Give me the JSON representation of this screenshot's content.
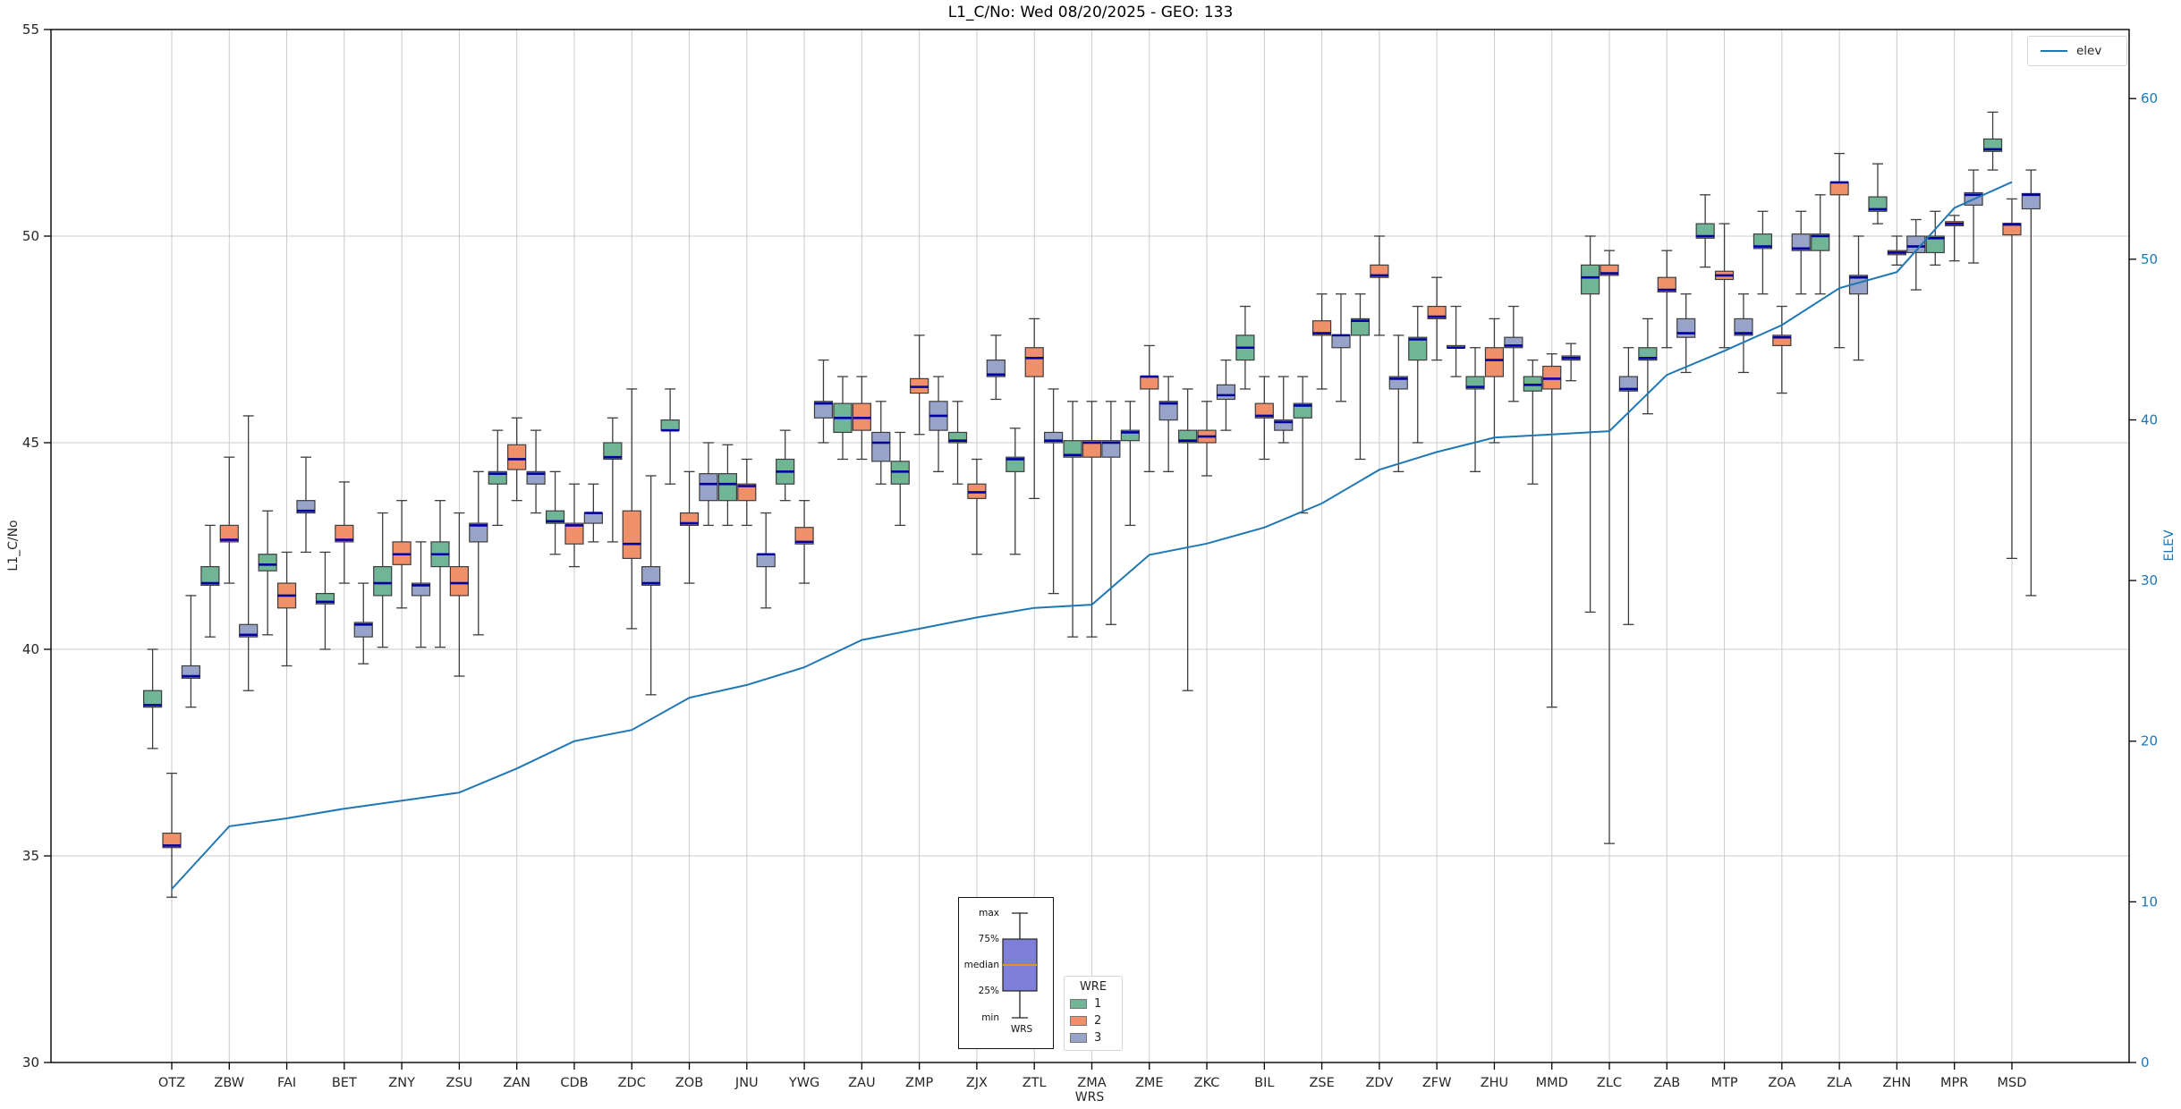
{
  "title": "L1_C/No: Wed 08/20/2025 - GEO: 133",
  "axes": {
    "left": {
      "label": "L1_C/No",
      "ticks": [
        30,
        35,
        40,
        45,
        50,
        55
      ],
      "color": "#262626"
    },
    "right": {
      "label": "ELEV",
      "ticks": [
        0,
        10,
        20,
        30,
        40,
        50,
        60
      ],
      "color": "#1f77b4"
    },
    "x": {
      "label": "WRS"
    }
  },
  "legend_elev": {
    "label": "elev",
    "line_color": "#1f77b4"
  },
  "legend_wre": {
    "title": "WRE",
    "items": [
      {
        "label": "1",
        "color": "#6fb596"
      },
      {
        "label": "2",
        "color": "#f0906a"
      },
      {
        "label": "3",
        "color": "#97a3c8"
      }
    ]
  },
  "inset_legend": {
    "labels": [
      "max",
      "75%",
      "median",
      "25%",
      "min"
    ],
    "xlabel": "WRS",
    "box_color": "#7f7fd9",
    "median_color": "#ee8833"
  },
  "chart_data": {
    "type": "boxplot+line",
    "title": "L1_C/No: Wed 08/20/2025 - GEO: 133",
    "xlabel": "WRS",
    "ylabel_left": "L1_C/No",
    "ylabel_right": "ELEV",
    "ylim_left": [
      30,
      55
    ],
    "ylim_right": [
      0,
      64.3
    ],
    "grid": true,
    "grid_left_values": [
      35,
      40,
      45,
      50
    ],
    "categories": [
      "OTZ",
      "ZBW",
      "FAI",
      "BET",
      "ZNY",
      "ZSU",
      "ZAN",
      "CDB",
      "ZDC",
      "ZOB",
      "JNU",
      "YWG",
      "ZAU",
      "ZMP",
      "ZJX",
      "ZTL",
      "ZMA",
      "ZME",
      "ZKC",
      "BIL",
      "ZSE",
      "ZDV",
      "ZFW",
      "ZHU",
      "MMD",
      "ZLC",
      "ZAB",
      "MTP",
      "ZOA",
      "ZLA",
      "ZHN",
      "MPR",
      "MSD"
    ],
    "box_stats_order": [
      "whisker_low",
      "q1",
      "median",
      "q3",
      "whisker_high"
    ],
    "series": [
      {
        "name": "1",
        "color": "#6fb596",
        "boxes": [
          [
            37.6,
            38.6,
            38.65,
            39.0,
            40.0
          ],
          [
            40.3,
            41.55,
            41.6,
            42.0,
            43.0
          ],
          [
            40.35,
            41.9,
            42.05,
            42.3,
            43.35
          ],
          [
            40.0,
            41.1,
            41.15,
            41.35,
            42.35
          ],
          [
            40.05,
            41.3,
            41.6,
            42.0,
            43.3
          ],
          [
            40.05,
            42.0,
            42.3,
            42.6,
            43.6
          ],
          [
            43.0,
            44.0,
            44.25,
            44.3,
            45.3
          ],
          [
            42.3,
            43.05,
            43.1,
            43.35,
            44.3
          ],
          [
            42.6,
            44.6,
            44.65,
            45.0,
            45.6
          ],
          [
            44.0,
            45.3,
            45.3,
            45.55,
            46.3
          ],
          [
            43.0,
            43.6,
            44.0,
            44.25,
            44.95
          ],
          [
            43.6,
            44.0,
            44.3,
            44.6,
            45.3
          ],
          [
            44.6,
            45.25,
            45.6,
            45.95,
            46.6
          ],
          [
            43.0,
            44.0,
            44.3,
            44.55,
            45.25
          ],
          [
            44.0,
            45.0,
            45.05,
            45.25,
            46.0
          ],
          [
            42.3,
            44.3,
            44.6,
            44.65,
            45.35
          ],
          [
            40.3,
            44.65,
            44.7,
            45.05,
            46.0
          ],
          [
            43.0,
            45.05,
            45.25,
            45.3,
            46.0
          ],
          [
            39.0,
            45.0,
            45.05,
            45.3,
            46.3
          ],
          [
            46.3,
            47.0,
            47.3,
            47.6,
            48.3
          ],
          [
            43.3,
            45.6,
            45.9,
            45.95,
            46.6
          ],
          [
            44.6,
            47.6,
            47.95,
            48.0,
            48.6
          ],
          [
            45.0,
            47.0,
            47.5,
            47.55,
            48.3
          ],
          [
            44.3,
            46.3,
            46.35,
            46.6,
            47.3
          ],
          [
            44.0,
            46.25,
            46.4,
            46.6,
            47.0
          ],
          [
            40.9,
            48.6,
            49.0,
            49.3,
            50.0
          ],
          [
            45.7,
            47.0,
            47.05,
            47.3,
            48.0
          ],
          [
            49.25,
            49.95,
            50.0,
            50.3,
            51.0
          ],
          [
            48.6,
            49.7,
            49.75,
            50.05,
            50.6
          ],
          [
            48.6,
            49.65,
            50.0,
            50.05,
            51.0
          ],
          [
            50.3,
            50.6,
            50.65,
            50.95,
            51.75
          ],
          [
            49.3,
            49.6,
            49.95,
            50.0,
            50.6
          ],
          [
            51.6,
            52.05,
            52.1,
            52.35,
            53.0
          ]
        ]
      },
      {
        "name": "2",
        "color": "#f0906a",
        "boxes": [
          [
            34.0,
            35.2,
            35.25,
            35.55,
            37.0
          ],
          [
            41.6,
            42.6,
            42.65,
            43.0,
            44.65
          ],
          [
            39.6,
            41.0,
            41.3,
            41.6,
            42.35
          ],
          [
            41.6,
            42.6,
            42.65,
            43.0,
            44.05
          ],
          [
            41.0,
            42.05,
            42.3,
            42.6,
            43.6
          ],
          [
            39.35,
            41.3,
            41.6,
            42.0,
            43.3
          ],
          [
            43.6,
            44.35,
            44.6,
            44.95,
            45.6
          ],
          [
            42.0,
            42.55,
            43.0,
            43.05,
            44.0
          ],
          [
            40.5,
            42.2,
            42.55,
            43.35,
            46.3
          ],
          [
            41.6,
            43.0,
            43.05,
            43.3,
            44.3
          ],
          [
            43.0,
            43.6,
            43.95,
            44.0,
            44.6
          ],
          [
            41.6,
            42.55,
            42.6,
            42.95,
            43.6
          ],
          [
            44.6,
            45.3,
            45.6,
            45.95,
            46.6
          ],
          [
            45.2,
            46.2,
            46.35,
            46.55,
            47.6
          ],
          [
            42.3,
            43.65,
            43.8,
            44.0,
            44.6
          ],
          [
            43.65,
            46.6,
            47.05,
            47.3,
            48.0
          ],
          [
            40.3,
            44.65,
            45.0,
            45.05,
            46.0
          ],
          [
            44.3,
            46.3,
            46.6,
            46.6,
            47.35
          ],
          [
            44.2,
            45.0,
            45.15,
            45.3,
            46.0
          ],
          [
            44.6,
            45.6,
            45.65,
            45.95,
            46.6
          ],
          [
            46.3,
            47.6,
            47.65,
            47.95,
            48.6
          ],
          [
            47.6,
            49.0,
            49.05,
            49.3,
            50.0
          ],
          [
            47.0,
            48.0,
            48.05,
            48.3,
            49.0
          ],
          [
            45.0,
            46.6,
            47.0,
            47.3,
            48.0
          ],
          [
            38.6,
            46.3,
            46.55,
            46.85,
            47.15
          ],
          [
            35.3,
            49.05,
            49.1,
            49.3,
            49.65
          ],
          [
            47.3,
            48.65,
            48.7,
            49.0,
            49.65
          ],
          [
            47.3,
            48.95,
            49.05,
            49.15,
            50.3
          ],
          [
            46.2,
            47.35,
            47.55,
            47.6,
            48.3
          ],
          [
            47.3,
            51.0,
            51.3,
            51.3,
            52.0
          ],
          [
            49.3,
            49.55,
            49.6,
            49.65,
            50.0
          ],
          [
            49.4,
            50.25,
            50.3,
            50.35,
            50.5
          ],
          [
            42.2,
            50.03,
            50.28,
            50.31,
            50.9
          ]
        ]
      },
      {
        "name": "3",
        "color": "#97a3c8",
        "boxes": [
          [
            38.6,
            39.3,
            39.35,
            39.6,
            41.3
          ],
          [
            39.0,
            40.3,
            40.35,
            40.6,
            45.65
          ],
          [
            42.35,
            43.3,
            43.35,
            43.6,
            44.65
          ],
          [
            39.65,
            40.3,
            40.6,
            40.65,
            41.6
          ],
          [
            40.05,
            41.3,
            41.55,
            41.6,
            42.6
          ],
          [
            40.35,
            42.6,
            43.0,
            43.05,
            44.3
          ],
          [
            43.3,
            44.0,
            44.25,
            44.3,
            45.3
          ],
          [
            42.6,
            43.05,
            43.3,
            43.3,
            44.0
          ],
          [
            38.9,
            41.55,
            41.6,
            42.0,
            44.2
          ],
          [
            43.0,
            43.6,
            44.0,
            44.25,
            45.0
          ],
          [
            41.0,
            42.0,
            42.3,
            42.3,
            43.3
          ],
          [
            45.0,
            45.6,
            45.95,
            46.0,
            47.0
          ],
          [
            44.0,
            44.55,
            45.0,
            45.25,
            46.0
          ],
          [
            44.3,
            45.3,
            45.65,
            46.0,
            46.6
          ],
          [
            46.05,
            46.6,
            46.65,
            47.0,
            47.6
          ],
          [
            41.35,
            45.0,
            45.05,
            45.25,
            46.3
          ],
          [
            40.6,
            44.65,
            45.0,
            45.05,
            46.0
          ],
          [
            44.3,
            45.55,
            45.95,
            46.0,
            46.6
          ],
          [
            45.3,
            46.05,
            46.15,
            46.4,
            47.0
          ],
          [
            45.0,
            45.3,
            45.5,
            45.55,
            46.6
          ],
          [
            46.0,
            47.3,
            47.6,
            47.6,
            48.6
          ],
          [
            44.3,
            46.3,
            46.55,
            46.6,
            47.6
          ],
          [
            46.6,
            47.3,
            47.3,
            47.35,
            48.3
          ],
          [
            46.0,
            47.3,
            47.35,
            47.55,
            48.3
          ],
          [
            46.5,
            47.0,
            47.05,
            47.1,
            47.4
          ],
          [
            40.6,
            46.25,
            46.3,
            46.6,
            47.3
          ],
          [
            46.7,
            47.55,
            47.65,
            48.0,
            48.6
          ],
          [
            46.7,
            47.6,
            47.65,
            48.0,
            48.6
          ],
          [
            48.6,
            49.65,
            49.7,
            50.05,
            50.6
          ],
          [
            47.0,
            48.6,
            49.0,
            49.05,
            50.0
          ],
          [
            48.7,
            49.6,
            49.75,
            50.0,
            50.4
          ],
          [
            49.35,
            50.75,
            51.0,
            51.05,
            51.6
          ],
          [
            41.3,
            50.66,
            51.0,
            51.03,
            51.6
          ]
        ]
      }
    ],
    "line": {
      "name": "elev",
      "axis": "right",
      "color": "#1f77b4",
      "values": [
        10.8,
        14.7,
        15.2,
        15.8,
        16.3,
        16.8,
        18.3,
        20.0,
        20.7,
        22.7,
        23.5,
        24.6,
        26.3,
        27.0,
        27.7,
        28.3,
        28.5,
        31.6,
        32.3,
        33.3,
        34.8,
        36.9,
        38.0,
        38.9,
        39.1,
        39.3,
        42.8,
        44.3,
        45.9,
        48.2,
        49.2,
        53.2,
        54.8
      ]
    },
    "style_colors": {
      "median_line": "#0000a0",
      "box_border": "#3d3d3d",
      "whisker": "#3d3d3d",
      "gridline": "#cbcbcb",
      "frame": "#000000"
    }
  }
}
